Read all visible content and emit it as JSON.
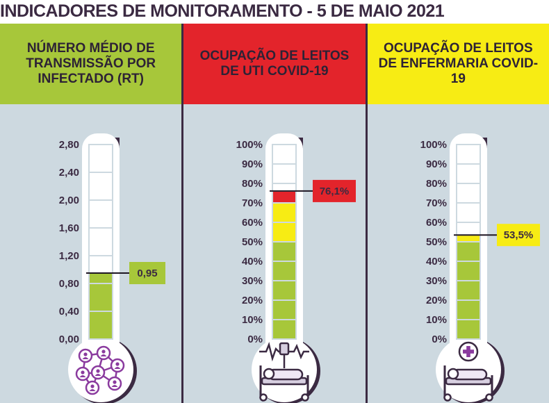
{
  "title": "INDICADORES DE MONITORAMENTO - 5 DE MAIO 2021",
  "colors": {
    "green": "#a7c73a",
    "red": "#e3242b",
    "yellow": "#f7ec14",
    "dark": "#3b2a42",
    "panel_bg": "#cdd9e0",
    "icon_purple": "#8a3a9e"
  },
  "chart_data": [
    {
      "type": "bar",
      "title": "NÚMERO MÉDIO DE TRANSMISSÃO POR INFECTADO (RT)",
      "header_color": "#a7c73a",
      "value": 0.95,
      "value_label": "0,95",
      "ylim": [
        0,
        2.8
      ],
      "ticks": [
        "0,00",
        "0,40",
        "0,80",
        "1,20",
        "1,60",
        "2,00",
        "2,40",
        "2,80"
      ],
      "segment_colors": [
        "#a7c73a",
        "#a7c73a",
        "#a7c73a",
        "#a7c73a",
        "#a7c73a",
        "#a7c73a",
        "#a7c73a"
      ],
      "icon": "network-people-icon"
    },
    {
      "type": "bar",
      "title": "OCUPAÇÃO DE LEITOS DE UTI COVID-19",
      "header_color": "#e3242b",
      "value": 76.1,
      "value_label": "76,1%",
      "ylim": [
        0,
        100
      ],
      "ticks": [
        "0%",
        "10%",
        "20%",
        "30%",
        "40%",
        "50%",
        "60%",
        "70%",
        "80%",
        "90%",
        "100%"
      ],
      "segment_colors": [
        "#a7c73a",
        "#a7c73a",
        "#a7c73a",
        "#a7c73a",
        "#a7c73a",
        "#f7ec14",
        "#f7ec14",
        "#e3242b",
        "#e3242b",
        "#e3242b"
      ],
      "icon": "icu-bed-icon"
    },
    {
      "type": "bar",
      "title": "OCUPAÇÃO DE LEITOS DE ENFERMARIA COVID-19",
      "header_color": "#f7ec14",
      "value": 53.5,
      "value_label": "53,5%",
      "ylim": [
        0,
        100
      ],
      "ticks": [
        "0%",
        "10%",
        "20%",
        "30%",
        "40%",
        "50%",
        "60%",
        "70%",
        "80%",
        "90%",
        "100%"
      ],
      "segment_colors": [
        "#a7c73a",
        "#a7c73a",
        "#a7c73a",
        "#a7c73a",
        "#a7c73a",
        "#f7ec14",
        "#f7ec14",
        "#e3242b",
        "#e3242b",
        "#e3242b"
      ],
      "icon": "ward-bed-icon"
    }
  ]
}
